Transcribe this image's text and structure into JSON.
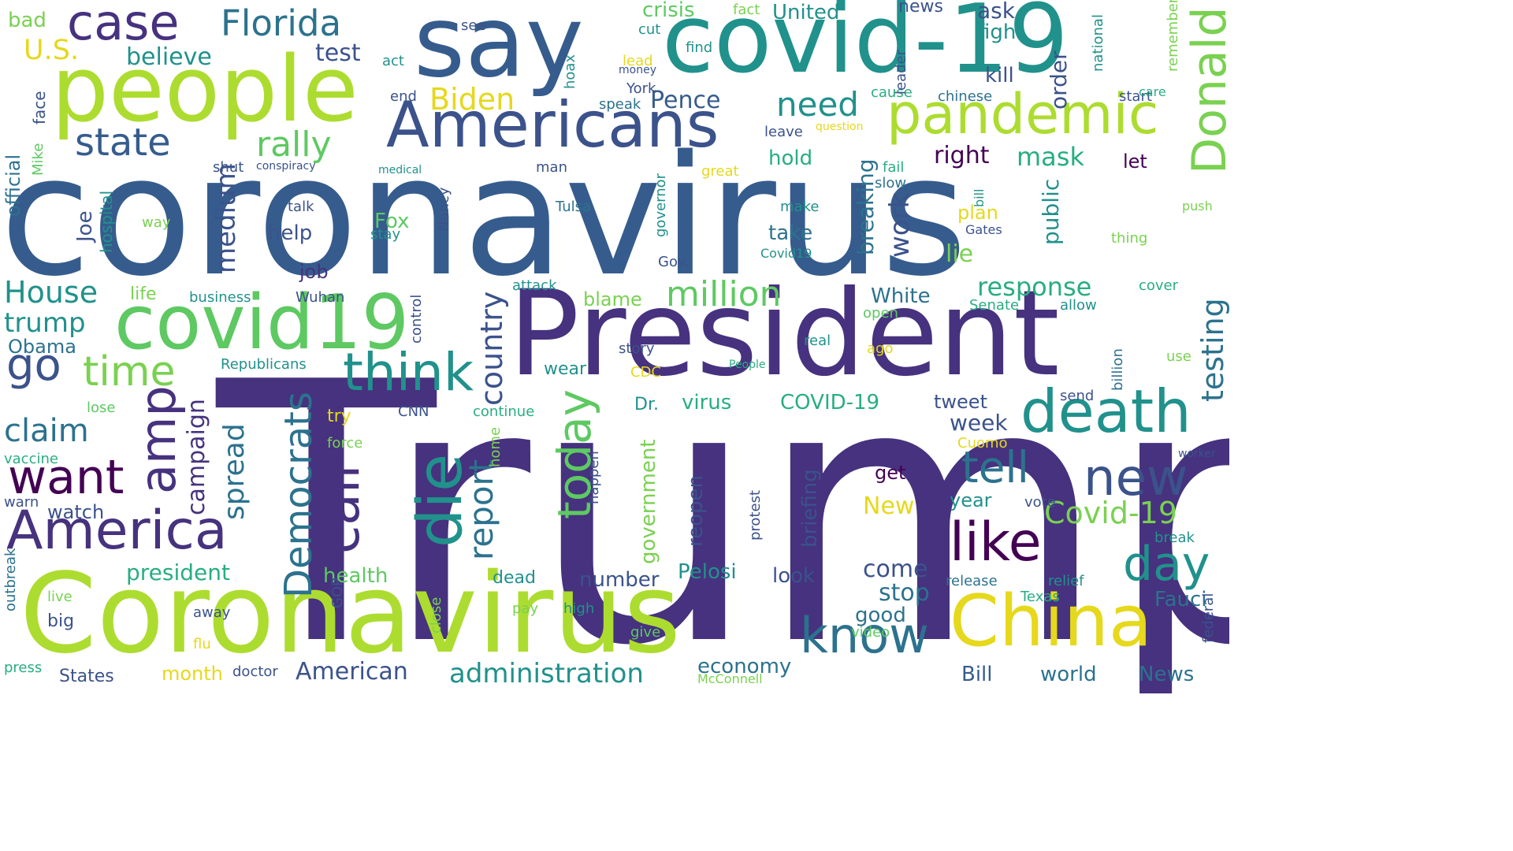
{
  "word_cloud": {
    "colors": {
      "dark_purple": "#46327e",
      "purple": "#3b528b",
      "blue": "#365c8d",
      "steel": "#2c728e",
      "teal": "#21918c",
      "green_teal": "#28ae80",
      "green": "#5ec962",
      "light_green": "#7ad151",
      "lime": "#addc30",
      "yellow": "#e6d81c",
      "deep": "#440154"
    },
    "words": [
      {
        "text": "Trump",
        "color": "dark_purple",
        "rotated": false
      },
      {
        "text": "coronavirus",
        "color": "blue",
        "rotated": false
      },
      {
        "text": "President",
        "color": "dark_purple",
        "rotated": false
      },
      {
        "text": "Coronavirus",
        "color": "lime",
        "rotated": false
      },
      {
        "text": "covid-19",
        "color": "teal",
        "rotated": false
      },
      {
        "text": "say",
        "color": "blue",
        "rotated": false
      },
      {
        "text": "people",
        "color": "lime",
        "rotated": false
      },
      {
        "text": "Americans",
        "color": "purple",
        "rotated": false
      },
      {
        "text": "covid19",
        "color": "green",
        "rotated": false
      },
      {
        "text": "China",
        "color": "yellow",
        "rotated": false
      },
      {
        "text": "pandemic",
        "color": "lime",
        "rotated": false
      },
      {
        "text": "death",
        "color": "teal",
        "rotated": false
      },
      {
        "text": "case",
        "color": "dark_purple",
        "rotated": false
      },
      {
        "text": "think",
        "color": "teal",
        "rotated": false
      },
      {
        "text": "know",
        "color": "steel",
        "rotated": false
      },
      {
        "text": "America",
        "color": "dark_purple",
        "rotated": false
      },
      {
        "text": "like",
        "color": "deep",
        "rotated": false
      },
      {
        "text": "Florida",
        "color": "steel",
        "rotated": false
      },
      {
        "text": "tell",
        "color": "steel",
        "rotated": false
      },
      {
        "text": "new",
        "color": "purple",
        "rotated": false
      },
      {
        "text": "day",
        "color": "teal",
        "rotated": false
      },
      {
        "text": "want",
        "color": "deep",
        "rotated": false
      },
      {
        "text": "go",
        "color": "purple",
        "rotated": false
      },
      {
        "text": "time",
        "color": "light_green",
        "rotated": false
      },
      {
        "text": "state",
        "color": "blue",
        "rotated": false
      },
      {
        "text": "need",
        "color": "teal",
        "rotated": false
      },
      {
        "text": "rally",
        "color": "green",
        "rotated": false
      },
      {
        "text": "million",
        "color": "green",
        "rotated": false
      },
      {
        "text": "Covid-19",
        "color": "light_green",
        "rotated": false
      },
      {
        "text": "Biden",
        "color": "yellow",
        "rotated": false
      },
      {
        "text": "claim",
        "color": "steel",
        "rotated": false
      },
      {
        "text": "House",
        "color": "teal",
        "rotated": false
      },
      {
        "text": "trump",
        "color": "teal",
        "rotated": false
      },
      {
        "text": "administration",
        "color": "teal",
        "rotated": false
      },
      {
        "text": "U.S.",
        "color": "yellow",
        "rotated": false
      },
      {
        "text": "believe",
        "color": "teal",
        "rotated": false
      },
      {
        "text": "Pence",
        "color": "blue",
        "rotated": false
      },
      {
        "text": "test",
        "color": "purple",
        "rotated": false
      },
      {
        "text": "response",
        "color": "green_teal",
        "rotated": false
      },
      {
        "text": "president",
        "color": "green_teal",
        "rotated": false
      },
      {
        "text": "American",
        "color": "purple",
        "rotated": false
      },
      {
        "text": "virus",
        "color": "green_teal",
        "rotated": false
      },
      {
        "text": "COVID-19",
        "color": "green_teal",
        "rotated": false
      },
      {
        "text": "stop",
        "color": "steel",
        "rotated": false
      },
      {
        "text": "come",
        "color": "purple",
        "rotated": false
      },
      {
        "text": "Pelosi",
        "color": "teal",
        "rotated": false
      },
      {
        "text": "week",
        "color": "purple",
        "rotated": false
      },
      {
        "text": "health",
        "color": "green",
        "rotated": false
      },
      {
        "text": "lie",
        "color": "light_green",
        "rotated": false
      },
      {
        "text": "mask",
        "color": "green_teal",
        "rotated": false
      },
      {
        "text": "right",
        "color": "deep",
        "rotated": false
      },
      {
        "text": "hold",
        "color": "green_teal",
        "rotated": false
      },
      {
        "text": "take",
        "color": "steel",
        "rotated": false
      },
      {
        "text": "help",
        "color": "purple",
        "rotated": false
      },
      {
        "text": "White",
        "color": "steel",
        "rotated": false
      },
      {
        "text": "Fauci",
        "color": "steel",
        "rotated": false
      },
      {
        "text": "good",
        "color": "steel",
        "rotated": false
      },
      {
        "text": "economy",
        "color": "steel",
        "rotated": false
      },
      {
        "text": "world",
        "color": "steel",
        "rotated": false
      },
      {
        "text": "News",
        "color": "steel",
        "rotated": false
      },
      {
        "text": "Bill",
        "color": "blue",
        "rotated": false
      },
      {
        "text": "number",
        "color": "purple",
        "rotated": false
      },
      {
        "text": "Fox",
        "color": "green",
        "rotated": false
      },
      {
        "text": "crisis",
        "color": "green",
        "rotated": false
      },
      {
        "text": "United",
        "color": "teal",
        "rotated": false
      },
      {
        "text": "ask",
        "color": "purple",
        "rotated": false
      },
      {
        "text": "fight",
        "color": "teal",
        "rotated": false
      },
      {
        "text": "kill",
        "color": "purple",
        "rotated": false
      },
      {
        "text": "news",
        "color": "purple",
        "rotated": false
      },
      {
        "text": "let",
        "color": "deep",
        "rotated": false
      },
      {
        "text": "job",
        "color": "dark_purple",
        "rotated": false
      },
      {
        "text": "blame",
        "color": "light_green",
        "rotated": false
      },
      {
        "text": "month",
        "color": "yellow",
        "rotated": false
      },
      {
        "text": "Obama",
        "color": "steel",
        "rotated": false
      },
      {
        "text": "watch",
        "color": "purple",
        "rotated": false
      },
      {
        "text": "big",
        "color": "purple",
        "rotated": false
      },
      {
        "text": "States",
        "color": "purple",
        "rotated": false
      },
      {
        "text": "tweet",
        "color": "purple",
        "rotated": false
      },
      {
        "text": "get",
        "color": "deep",
        "rotated": false
      },
      {
        "text": "New",
        "color": "yellow",
        "rotated": false
      },
      {
        "text": "look",
        "color": "purple",
        "rotated": false
      },
      {
        "text": "bad",
        "color": "light_green",
        "rotated": false
      },
      {
        "text": "life",
        "color": "light_green",
        "rotated": false
      },
      {
        "text": "Dr.",
        "color": "teal",
        "rotated": false
      },
      {
        "text": "try",
        "color": "yellow",
        "rotated": false
      },
      {
        "text": "wear",
        "color": "teal",
        "rotated": false
      },
      {
        "text": "dead",
        "color": "teal",
        "rotated": false
      },
      {
        "text": "Republicans",
        "color": "teal",
        "rotated": false
      },
      {
        "text": "year",
        "color": "teal",
        "rotated": false
      },
      {
        "text": "plan",
        "color": "yellow",
        "rotated": false
      },
      {
        "text": "Tulsa",
        "color": "steel",
        "rotated": false
      },
      {
        "text": "speak",
        "color": "steel",
        "rotated": false
      },
      {
        "text": "see",
        "color": "purple",
        "rotated": false
      },
      {
        "text": "act",
        "color": "teal",
        "rotated": false
      },
      {
        "text": "end",
        "color": "purple",
        "rotated": false
      },
      {
        "text": "cut",
        "color": "teal",
        "rotated": false
      },
      {
        "text": "fact",
        "color": "light_green",
        "rotated": false
      },
      {
        "text": "lead",
        "color": "yellow",
        "rotated": false
      },
      {
        "text": "money",
        "color": "purple",
        "rotated": false
      },
      {
        "text": "find",
        "color": "teal",
        "rotated": false
      },
      {
        "text": "York",
        "color": "purple",
        "rotated": false
      },
      {
        "text": "leave",
        "color": "purple",
        "rotated": false
      },
      {
        "text": "question",
        "color": "yellow",
        "rotated": false
      },
      {
        "text": "cause",
        "color": "green_teal",
        "rotated": false
      },
      {
        "text": "chinese",
        "color": "steel",
        "rotated": false
      },
      {
        "text": "start",
        "color": "purple",
        "rotated": false
      },
      {
        "text": "care",
        "color": "green_teal",
        "rotated": false
      },
      {
        "text": "fail",
        "color": "green_teal",
        "rotated": false
      },
      {
        "text": "slow",
        "color": "steel",
        "rotated": false
      },
      {
        "text": "great",
        "color": "yellow",
        "rotated": false
      },
      {
        "text": "medical",
        "color": "teal",
        "rotated": false
      },
      {
        "text": "man",
        "color": "purple",
        "rotated": false
      },
      {
        "text": "shut",
        "color": "purple",
        "rotated": false
      },
      {
        "text": "conspiracy",
        "color": "purple",
        "rotated": false
      },
      {
        "text": "make",
        "color": "teal",
        "rotated": false
      },
      {
        "text": "talk",
        "color": "purple",
        "rotated": false
      },
      {
        "text": "way",
        "color": "light_green",
        "rotated": false
      },
      {
        "text": "stay",
        "color": "teal",
        "rotated": false
      },
      {
        "text": "Gates",
        "color": "purple",
        "rotated": false
      },
      {
        "text": "push",
        "color": "light_green",
        "rotated": false
      },
      {
        "text": "thing",
        "color": "light_green",
        "rotated": false
      },
      {
        "text": "Covid19",
        "color": "teal",
        "rotated": false
      },
      {
        "text": "Gov.",
        "color": "purple",
        "rotated": false
      },
      {
        "text": "business",
        "color": "teal",
        "rotated": false
      },
      {
        "text": "Wuhan",
        "color": "purple",
        "rotated": false
      },
      {
        "text": "attack",
        "color": "teal",
        "rotated": false
      },
      {
        "text": "Senate",
        "color": "green_teal",
        "rotated": false
      },
      {
        "text": "allow",
        "color": "teal",
        "rotated": false
      },
      {
        "text": "cover",
        "color": "green_teal",
        "rotated": false
      },
      {
        "text": "open",
        "color": "green",
        "rotated": false
      },
      {
        "text": "real",
        "color": "teal",
        "rotated": false
      },
      {
        "text": "story",
        "color": "purple",
        "rotated": false
      },
      {
        "text": "ago",
        "color": "yellow",
        "rotated": false
      },
      {
        "text": "use",
        "color": "light_green",
        "rotated": false
      },
      {
        "text": "People",
        "color": "green_teal",
        "rotated": false
      },
      {
        "text": "CDC",
        "color": "yellow",
        "rotated": false
      },
      {
        "text": "send",
        "color": "purple",
        "rotated": false
      },
      {
        "text": "lose",
        "color": "green",
        "rotated": false
      },
      {
        "text": "CNN",
        "color": "purple",
        "rotated": false
      },
      {
        "text": "continue",
        "color": "green_teal",
        "rotated": false
      },
      {
        "text": "force",
        "color": "light_green",
        "rotated": false
      },
      {
        "text": "Cuomo",
        "color": "yellow",
        "rotated": false
      },
      {
        "text": "vaccine",
        "color": "green_teal",
        "rotated": false
      },
      {
        "text": "worker",
        "color": "purple",
        "rotated": false
      },
      {
        "text": "warn",
        "color": "purple",
        "rotated": false
      },
      {
        "text": "vote",
        "color": "purple",
        "rotated": false
      },
      {
        "text": "break",
        "color": "teal",
        "rotated": false
      },
      {
        "text": "release",
        "color": "steel",
        "rotated": false
      },
      {
        "text": "relief",
        "color": "teal",
        "rotated": false
      },
      {
        "text": "live",
        "color": "light_green",
        "rotated": false
      },
      {
        "text": "away",
        "color": "purple",
        "rotated": false
      },
      {
        "text": "pay",
        "color": "light_green",
        "rotated": false
      },
      {
        "text": "high",
        "color": "teal",
        "rotated": false
      },
      {
        "text": "Texas",
        "color": "green_teal",
        "rotated": false
      },
      {
        "text": "give",
        "color": "green",
        "rotated": false
      },
      {
        "text": "video",
        "color": "green",
        "rotated": false
      },
      {
        "text": "flu",
        "color": "yellow",
        "rotated": false
      },
      {
        "text": "press",
        "color": "green_teal",
        "rotated": false
      },
      {
        "text": "doctor",
        "color": "purple",
        "rotated": false
      },
      {
        "text": "McConnell",
        "color": "light_green",
        "rotated": false
      },
      {
        "text": "Donald",
        "color": "light_green",
        "rotated": true
      },
      {
        "text": "testing",
        "color": "steel",
        "rotated": true
      },
      {
        "text": "amp",
        "color": "dark_purple",
        "rotated": true
      },
      {
        "text": "die",
        "color": "teal",
        "rotated": true
      },
      {
        "text": "call",
        "color": "dark_purple",
        "rotated": true
      },
      {
        "text": "today",
        "color": "green",
        "rotated": true
      },
      {
        "text": "report",
        "color": "steel",
        "rotated": true
      },
      {
        "text": "country",
        "color": "purple",
        "rotated": true
      },
      {
        "text": "Democrats",
        "color": "steel",
        "rotated": true
      },
      {
        "text": "spread",
        "color": "steel",
        "rotated": true
      },
      {
        "text": "campaign",
        "color": "dark_purple",
        "rotated": true
      },
      {
        "text": "medium",
        "color": "purple",
        "rotated": true
      },
      {
        "text": "work",
        "color": "purple",
        "rotated": true
      },
      {
        "text": "breaking",
        "color": "steel",
        "rotated": true
      },
      {
        "text": "public",
        "color": "teal",
        "rotated": true
      },
      {
        "text": "order",
        "color": "purple",
        "rotated": true
      },
      {
        "text": "government",
        "color": "light_green",
        "rotated": true
      },
      {
        "text": "reopen",
        "color": "purple",
        "rotated": true
      },
      {
        "text": "briefing",
        "color": "purple",
        "rotated": true
      },
      {
        "text": "official",
        "color": "steel",
        "rotated": true
      },
      {
        "text": "Joe",
        "color": "purple",
        "rotated": true
      },
      {
        "text": "hospital",
        "color": "teal",
        "rotated": true
      },
      {
        "text": "face",
        "color": "purple",
        "rotated": true
      },
      {
        "text": "Mike",
        "color": "green",
        "rotated": true
      },
      {
        "text": "hoax",
        "color": "teal",
        "rotated": true
      },
      {
        "text": "leader",
        "color": "purple",
        "rotated": true
      },
      {
        "text": "national",
        "color": "teal",
        "rotated": true
      },
      {
        "text": "remember",
        "color": "light_green",
        "rotated": true
      },
      {
        "text": "governor",
        "color": "teal",
        "rotated": true
      },
      {
        "text": "Nancy",
        "color": "purple",
        "rotated": true
      },
      {
        "text": "bill",
        "color": "teal",
        "rotated": true
      },
      {
        "text": "control",
        "color": "purple",
        "rotated": true
      },
      {
        "text": "home",
        "color": "light_green",
        "rotated": true
      },
      {
        "text": "happen",
        "color": "purple",
        "rotated": true
      },
      {
        "text": "protest",
        "color": "purple",
        "rotated": true
      },
      {
        "text": "billion",
        "color": "steel",
        "rotated": true
      },
      {
        "text": "outbreak",
        "color": "steel",
        "rotated": true
      },
      {
        "text": "GOP",
        "color": "purple",
        "rotated": true
      },
      {
        "text": "close",
        "color": "light_green",
        "rotated": true
      },
      {
        "text": "federal",
        "color": "purple",
        "rotated": true
      }
    ]
  }
}
